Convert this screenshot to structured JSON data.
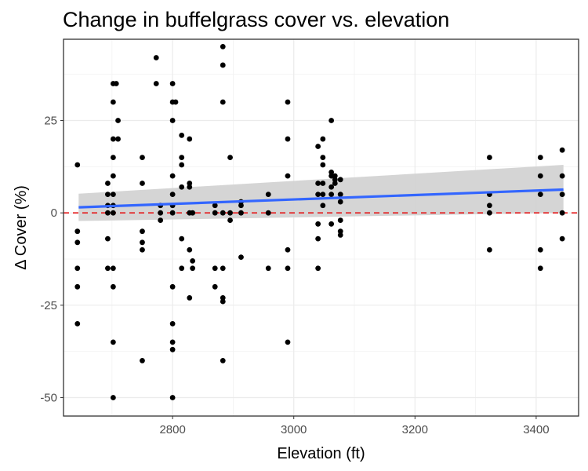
{
  "chart_data": {
    "type": "scatter",
    "title": "Change in buffelgrass cover vs. elevation",
    "xlabel": "Elevation (ft)",
    "ylabel": "Δ Cover (%)",
    "xlim": [
      2620,
      3470
    ],
    "ylim": [
      -55,
      47
    ],
    "x_ticks": [
      2800,
      3000,
      3200,
      3400
    ],
    "y_ticks": [
      -50,
      -25,
      0,
      25
    ],
    "grid": true,
    "reference_line": {
      "y": 0,
      "style": "dashed",
      "color": "#e41a1c"
    },
    "trend": {
      "method": "linear",
      "x": [
        2645,
        3445
      ],
      "y": [
        1.5,
        6.3
      ],
      "ci_lower": [
        -2.2,
        0.0
      ],
      "ci_upper": [
        5.2,
        13.0
      ],
      "color": "#3366ff",
      "band_color": "#d3d3d3"
    },
    "points": [
      [
        2643,
        13
      ],
      [
        2643,
        -5
      ],
      [
        2643,
        -8
      ],
      [
        2643,
        -15
      ],
      [
        2643,
        -20
      ],
      [
        2643,
        -30
      ],
      [
        2693,
        8
      ],
      [
        2693,
        5
      ],
      [
        2693,
        2
      ],
      [
        2693,
        0
      ],
      [
        2693,
        -7
      ],
      [
        2693,
        -15
      ],
      [
        2702,
        35
      ],
      [
        2702,
        30
      ],
      [
        2702,
        20
      ],
      [
        2702,
        15
      ],
      [
        2702,
        10
      ],
      [
        2702,
        5
      ],
      [
        2702,
        2
      ],
      [
        2702,
        0
      ],
      [
        2702,
        -15
      ],
      [
        2702,
        -20
      ],
      [
        2702,
        -35
      ],
      [
        2702,
        -50
      ],
      [
        2707,
        35
      ],
      [
        2710,
        25
      ],
      [
        2710,
        20
      ],
      [
        2750,
        15
      ],
      [
        2750,
        8
      ],
      [
        2750,
        -5
      ],
      [
        2750,
        -8
      ],
      [
        2750,
        -10
      ],
      [
        2750,
        -40
      ],
      [
        2773,
        42
      ],
      [
        2773,
        35
      ],
      [
        2780,
        2
      ],
      [
        2780,
        0
      ],
      [
        2780,
        -2
      ],
      [
        2800,
        35
      ],
      [
        2800,
        30
      ],
      [
        2800,
        25
      ],
      [
        2800,
        10
      ],
      [
        2800,
        5
      ],
      [
        2800,
        2
      ],
      [
        2800,
        0
      ],
      [
        2800,
        -20
      ],
      [
        2800,
        -30
      ],
      [
        2800,
        -35
      ],
      [
        2800,
        -37
      ],
      [
        2800,
        -50
      ],
      [
        2805,
        30
      ],
      [
        2815,
        21
      ],
      [
        2815,
        15
      ],
      [
        2815,
        13
      ],
      [
        2815,
        7
      ],
      [
        2815,
        -7
      ],
      [
        2815,
        -15
      ],
      [
        2828,
        20
      ],
      [
        2828,
        8
      ],
      [
        2828,
        7
      ],
      [
        2828,
        0
      ],
      [
        2828,
        -10
      ],
      [
        2828,
        -23
      ],
      [
        2833,
        0
      ],
      [
        2833,
        -13
      ],
      [
        2833,
        -15
      ],
      [
        2870,
        2
      ],
      [
        2870,
        0
      ],
      [
        2870,
        -15
      ],
      [
        2870,
        -20
      ],
      [
        2883,
        45
      ],
      [
        2883,
        40
      ],
      [
        2883,
        30
      ],
      [
        2883,
        0
      ],
      [
        2883,
        -15
      ],
      [
        2883,
        -23
      ],
      [
        2883,
        -24
      ],
      [
        2883,
        -40
      ],
      [
        2895,
        15
      ],
      [
        2895,
        0
      ],
      [
        2895,
        -2
      ],
      [
        2913,
        3
      ],
      [
        2913,
        2
      ],
      [
        2913,
        0
      ],
      [
        2913,
        -12
      ],
      [
        2958,
        5
      ],
      [
        2958,
        0
      ],
      [
        2958,
        -15
      ],
      [
        2990,
        30
      ],
      [
        2990,
        20
      ],
      [
        2990,
        10
      ],
      [
        2990,
        -10
      ],
      [
        2990,
        -15
      ],
      [
        2990,
        -35
      ],
      [
        3040,
        18
      ],
      [
        3040,
        8
      ],
      [
        3040,
        5
      ],
      [
        3040,
        -3
      ],
      [
        3040,
        -7
      ],
      [
        3040,
        -15
      ],
      [
        3048,
        20
      ],
      [
        3048,
        15
      ],
      [
        3048,
        13
      ],
      [
        3048,
        8
      ],
      [
        3048,
        5
      ],
      [
        3048,
        2
      ],
      [
        3062,
        25
      ],
      [
        3062,
        11
      ],
      [
        3062,
        10
      ],
      [
        3062,
        7
      ],
      [
        3062,
        5
      ],
      [
        3062,
        -3
      ],
      [
        3068,
        10
      ],
      [
        3068,
        9
      ],
      [
        3068,
        8
      ],
      [
        3077,
        9
      ],
      [
        3077,
        5
      ],
      [
        3077,
        3
      ],
      [
        3077,
        -2
      ],
      [
        3077,
        -5
      ],
      [
        3077,
        -6
      ],
      [
        3323,
        15
      ],
      [
        3323,
        5
      ],
      [
        3323,
        2
      ],
      [
        3323,
        0
      ],
      [
        3323,
        -10
      ],
      [
        3407,
        15
      ],
      [
        3407,
        10
      ],
      [
        3407,
        5
      ],
      [
        3407,
        -10
      ],
      [
        3407,
        -15
      ],
      [
        3443,
        17
      ],
      [
        3443,
        10
      ],
      [
        3443,
        5
      ],
      [
        3443,
        0
      ],
      [
        3443,
        -7
      ]
    ]
  }
}
